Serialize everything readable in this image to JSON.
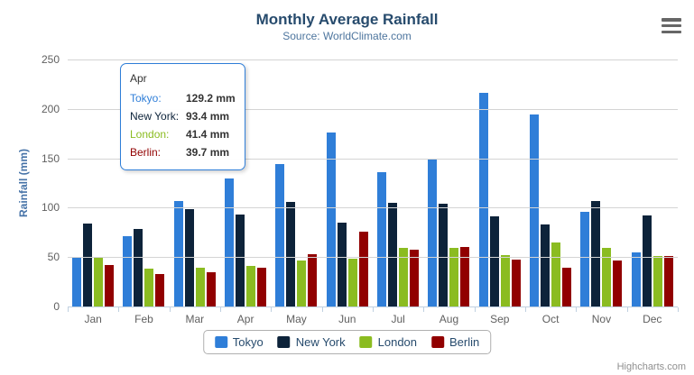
{
  "credits": "Highcharts.com",
  "tooltip": {
    "header": "Apr",
    "border_color": "#2f7ed8",
    "rows": [
      {
        "label": "Tokyo:",
        "value": "129.2 mm",
        "color": "#2f7ed8"
      },
      {
        "label": "New York:",
        "value": "93.4 mm",
        "color": "#0d233a"
      },
      {
        "label": "London:",
        "value": "41.4 mm",
        "color": "#8bbc21"
      },
      {
        "label": "Berlin:",
        "value": "39.7 mm",
        "color": "#910000"
      }
    ]
  },
  "chart_data": {
    "type": "bar",
    "title": "Monthly Average Rainfall",
    "subtitle": "Source: WorldClimate.com",
    "xlabel": "",
    "ylabel": "Rainfall (mm)",
    "ylim": [
      0,
      250
    ],
    "ytick_step": 50,
    "grid": true,
    "legend_position": "bottom",
    "categories": [
      "Jan",
      "Feb",
      "Mar",
      "Apr",
      "May",
      "Jun",
      "Jul",
      "Aug",
      "Sep",
      "Oct",
      "Nov",
      "Dec"
    ],
    "series": [
      {
        "name": "Tokyo",
        "color": "#2f7ed8",
        "values": [
          49.9,
          71.5,
          106.4,
          129.2,
          144.0,
          176.0,
          135.6,
          148.5,
          216.4,
          194.1,
          95.6,
          54.4
        ]
      },
      {
        "name": "New York",
        "color": "#0d233a",
        "values": [
          83.6,
          78.8,
          98.5,
          93.4,
          106.0,
          84.5,
          105.0,
          104.3,
          91.2,
          83.5,
          106.6,
          92.3
        ]
      },
      {
        "name": "London",
        "color": "#8bbc21",
        "values": [
          48.9,
          38.8,
          39.3,
          41.4,
          47.0,
          48.3,
          59.0,
          59.6,
          52.4,
          65.2,
          59.3,
          51.2
        ]
      },
      {
        "name": "Berlin",
        "color": "#910000",
        "values": [
          42.4,
          33.2,
          34.5,
          39.7,
          52.6,
          75.5,
          57.4,
          60.4,
          47.6,
          39.1,
          46.8,
          51.1
        ]
      }
    ]
  }
}
